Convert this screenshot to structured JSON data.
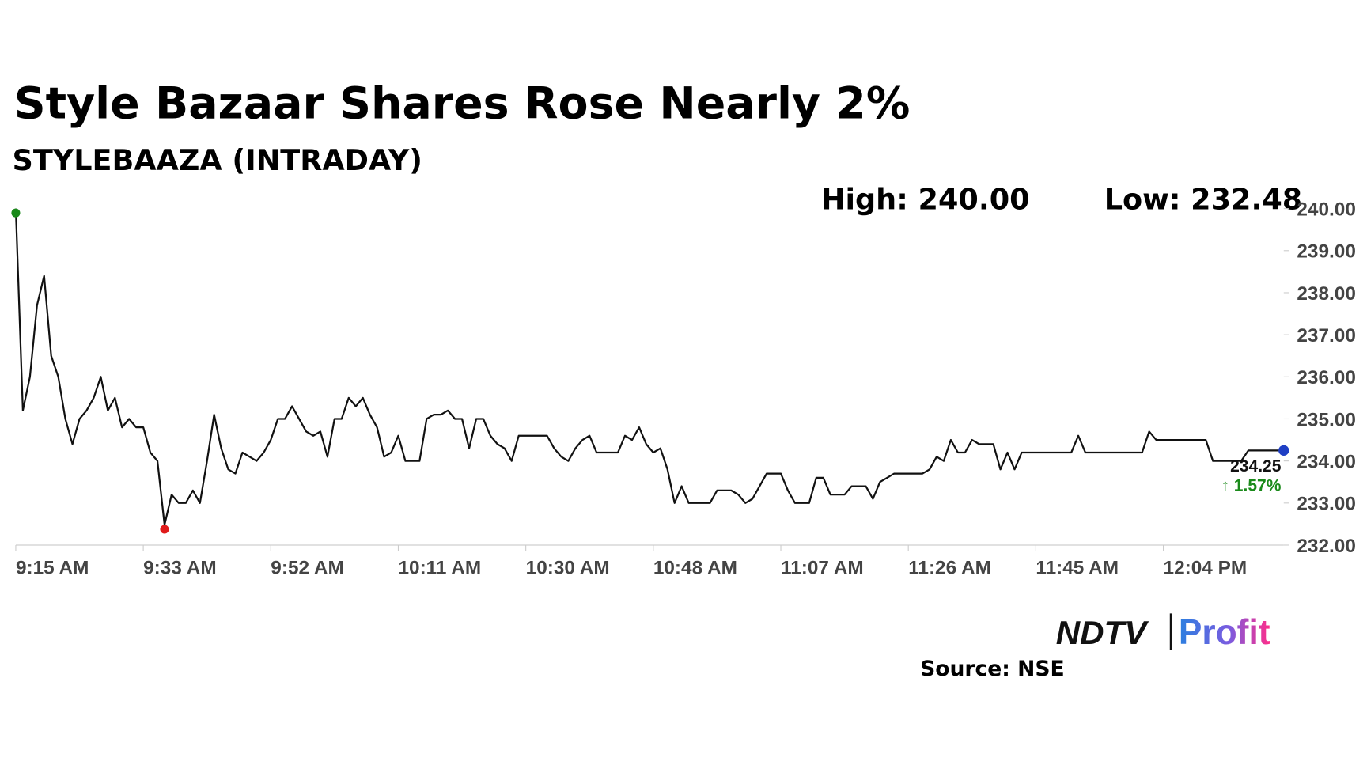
{
  "chart_data": {
    "type": "line",
    "title": "Style Bazaar Shares Rose Nearly 2%",
    "subtitle": "STYLEBAAZA (INTRADAY)",
    "high_label": "High: 240.00",
    "low_label": "Low: 232.48",
    "last_label": "234.25",
    "change_label": "↑ 1.57%",
    "categories": [
      "9:15 AM",
      null,
      null,
      null,
      null,
      null,
      null,
      null,
      null,
      null,
      null,
      null,
      null,
      null,
      null,
      null,
      null,
      null,
      "9:33 AM",
      null,
      null,
      null,
      null,
      null,
      null,
      null,
      null,
      null,
      null,
      null,
      null,
      null,
      null,
      null,
      null,
      null,
      "9:52 AM",
      null,
      null,
      null,
      null,
      null,
      null,
      null,
      null,
      null,
      null,
      null,
      null,
      null,
      null,
      null,
      null,
      null,
      "10:11 AM",
      null,
      null,
      null,
      null,
      null,
      null,
      null,
      null,
      null,
      null,
      null,
      null,
      null,
      null,
      null,
      null,
      null,
      "10:30 AM",
      null,
      null,
      null,
      null,
      null,
      null,
      null,
      null,
      null,
      null,
      null,
      null,
      null,
      null,
      null,
      null,
      null,
      "10:48 AM",
      null,
      null,
      null,
      null,
      null,
      null,
      null,
      null,
      null,
      null,
      null,
      null,
      null,
      null,
      null,
      null,
      null,
      "11:07 AM",
      null,
      null,
      null,
      null,
      null,
      null,
      null,
      null,
      null,
      null,
      null,
      null,
      null,
      null,
      null,
      null,
      null,
      "11:26 AM",
      null,
      null,
      null,
      null,
      null,
      null,
      null,
      null,
      null,
      null,
      null,
      null,
      null,
      null,
      null,
      null,
      null,
      "11:45 AM",
      null,
      null,
      null,
      null,
      null,
      null,
      null,
      null,
      null,
      null,
      null,
      null,
      null,
      null,
      null,
      null,
      null,
      "12:04 PM",
      null,
      null,
      null,
      null,
      null,
      null,
      null,
      null,
      null,
      null,
      null,
      null,
      null,
      null,
      null,
      null,
      null
    ],
    "series": [
      {
        "name": "STYLEBAAZA",
        "color": "#111111",
        "values": [
          240,
          235.2,
          236.0,
          237.7,
          238.4,
          236.5,
          236.0,
          235.0,
          234.4,
          235.0,
          235.2,
          235.5,
          236.0,
          235.2,
          235.5,
          234.8,
          235.0,
          234.8,
          234.8,
          234.2,
          234.0,
          232.48,
          233.2,
          233.0,
          233.0,
          233.3,
          233.0,
          234.0,
          235.1,
          234.3,
          233.8,
          233.7,
          234.2,
          234.1,
          234.0,
          234.2,
          234.5,
          235.0,
          235.0,
          235.3,
          235.0,
          234.7,
          234.6,
          234.7,
          234.1,
          235.0,
          235.0,
          235.5,
          235.3,
          235.5,
          235.1,
          234.8,
          234.1,
          234.2,
          234.6,
          234.0,
          234.0,
          234.0,
          235.0,
          235.1,
          235.1,
          235.2,
          235.0,
          235.0,
          234.3,
          235.0,
          235.0,
          234.6,
          234.4,
          234.3,
          234.0,
          234.6,
          234.6,
          234.6,
          234.6,
          234.6,
          234.3,
          234.1,
          234.0,
          234.3,
          234.5,
          234.6,
          234.2,
          234.2,
          234.2,
          234.2,
          234.6,
          234.5,
          234.8,
          234.4,
          234.2,
          234.3,
          233.8,
          233.0,
          233.4,
          233.0,
          233.0,
          233.0,
          233.0,
          233.3,
          233.3,
          233.3,
          233.2,
          233.0,
          233.1,
          233.4,
          233.7,
          233.7,
          233.7,
          233.3,
          233.0,
          233.0,
          233.0,
          233.6,
          233.6,
          233.2,
          233.2,
          233.2,
          233.4,
          233.4,
          233.4,
          233.1,
          233.5,
          233.6,
          233.7,
          233.7,
          233.7,
          233.7,
          233.7,
          233.8,
          234.1,
          234.0,
          234.5,
          234.2,
          234.2,
          234.5,
          234.4,
          234.4,
          234.4,
          233.8,
          234.2,
          233.8,
          234.2,
          234.2,
          234.2,
          234.2,
          234.2,
          234.2,
          234.2,
          234.2,
          234.6,
          234.2,
          234.2,
          234.2,
          234.2,
          234.2,
          234.2,
          234.2,
          234.2,
          234.2,
          234.7,
          234.5,
          234.5,
          234.5,
          234.5,
          234.5,
          234.5,
          234.5,
          234.5,
          234.0,
          234.0,
          234.0,
          234.0,
          234.0,
          234.25,
          234.25,
          234.25,
          234.25,
          234.25,
          234.25
        ]
      }
    ],
    "ylim": [
      232,
      240
    ],
    "yticks": [
      {
        "value": 232,
        "label": "232.00"
      },
      {
        "value": 233,
        "label": "233.00"
      },
      {
        "value": 234,
        "label": "234.00"
      },
      {
        "value": 235,
        "label": "235.00"
      },
      {
        "value": 236,
        "label": "236.00"
      },
      {
        "value": 237,
        "label": "237.00"
      },
      {
        "value": 238,
        "label": "238.00"
      },
      {
        "value": 239,
        "label": "239.00"
      },
      {
        "value": 240,
        "label": "240.00"
      }
    ],
    "high_color": "#1a8a1a",
    "low_color": "#e01b1b",
    "last_color": "#1f3fc4",
    "change_color": "#1a8a1a"
  },
  "logo": {
    "brand": "NDTV",
    "product": "Profit"
  },
  "source": "Source: NSE"
}
